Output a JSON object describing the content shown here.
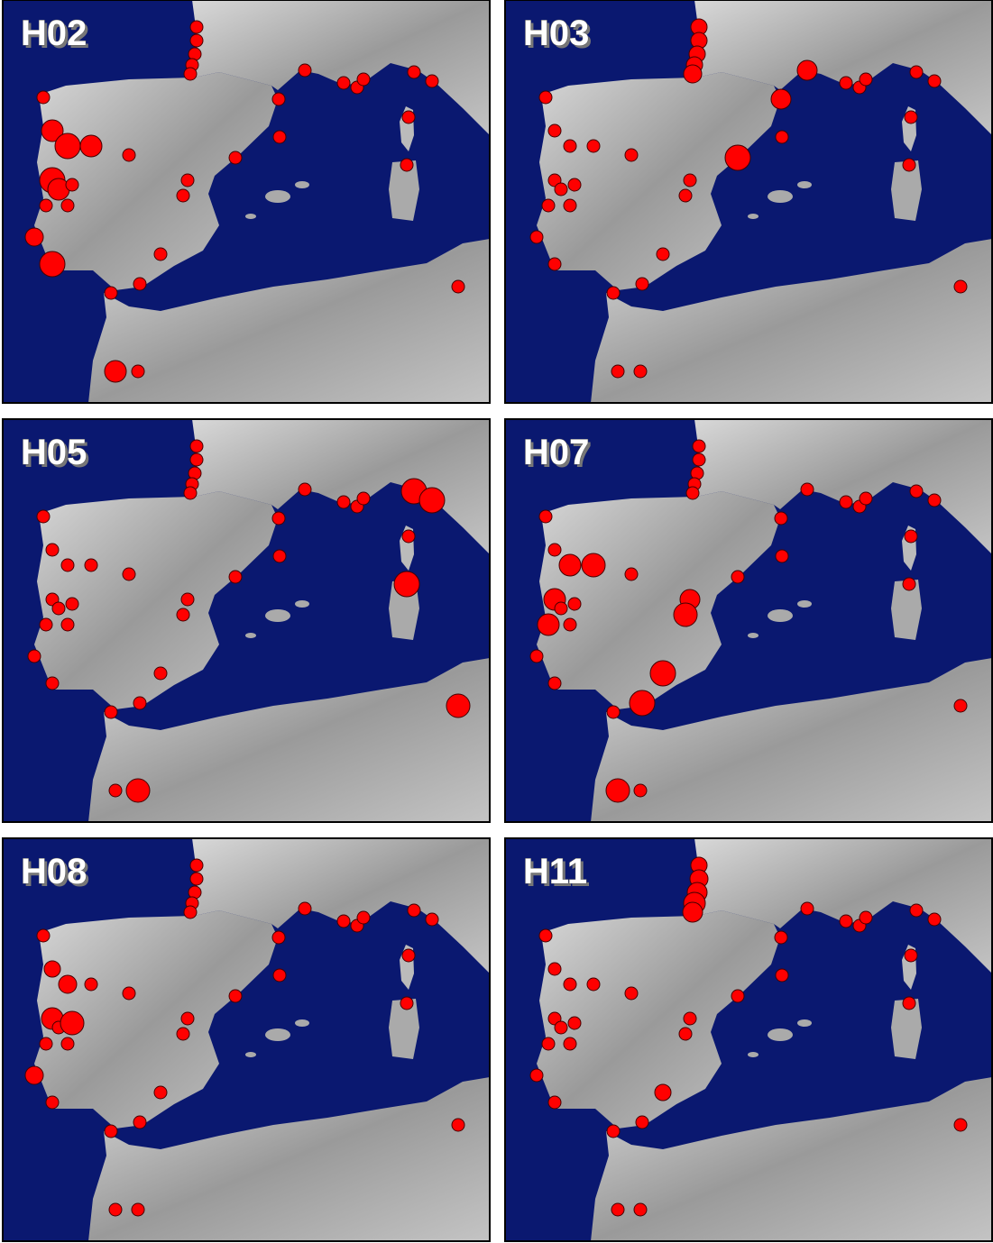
{
  "panels": [
    {
      "label": "H02"
    },
    {
      "label": "H03"
    },
    {
      "label": "H05"
    },
    {
      "label": "H07"
    },
    {
      "label": "H08"
    },
    {
      "label": "H11"
    }
  ]
}
